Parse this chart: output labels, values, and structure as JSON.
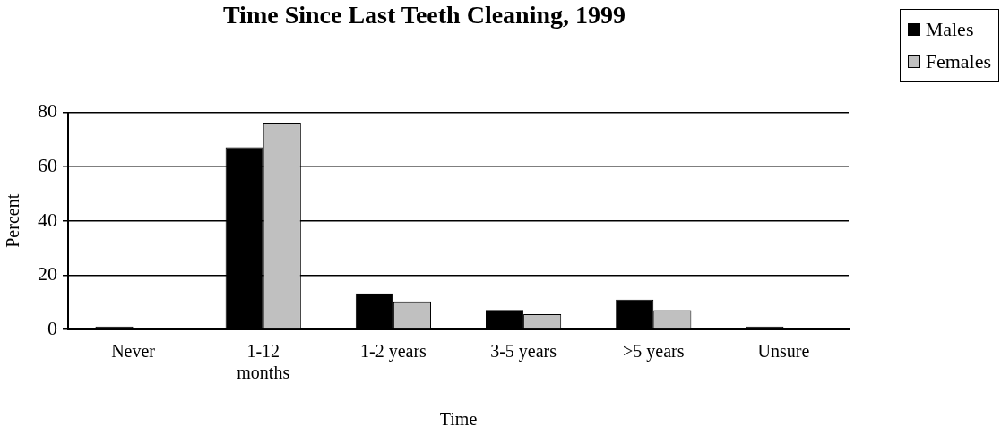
{
  "chart_data": {
    "type": "bar",
    "title": "Time Since Last Teeth Cleaning, 1999",
    "xlabel": "Time",
    "ylabel": "Percent",
    "categories": [
      "Never",
      "1-12 months",
      "1-2 years",
      "3-5 years",
      ">5 years",
      "Unsure"
    ],
    "series": [
      {
        "name": "Males",
        "color": "#000000",
        "values": [
          1.1,
          67.2,
          13.3,
          7.2,
          11.0,
          1.1
        ]
      },
      {
        "name": "Females",
        "color": "#c0c0c0",
        "values": [
          0,
          76.2,
          10.3,
          5.6,
          7.1,
          0
        ]
      }
    ],
    "ylim": [
      0,
      80
    ],
    "yticks": [
      0,
      20,
      40,
      60,
      80
    ],
    "grid": "y",
    "legend": "top right"
  }
}
